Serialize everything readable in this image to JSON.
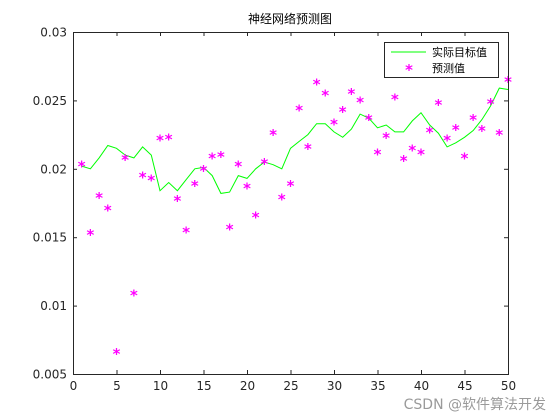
{
  "chart_data": {
    "type": "line",
    "title": "神经网络预测图",
    "xlabel": "",
    "ylabel": "",
    "xlim": [
      0,
      50
    ],
    "ylim": [
      0.005,
      0.03
    ],
    "x_ticks": [
      "0",
      "5",
      "10",
      "15",
      "20",
      "25",
      "30",
      "35",
      "40",
      "45",
      "50"
    ],
    "y_ticks": [
      "0.005",
      "0.01",
      "0.015",
      "0.02",
      "0.025",
      "0.03"
    ],
    "grid": false,
    "legend_position": "top-right",
    "x": [
      1,
      2,
      3,
      4,
      5,
      6,
      7,
      8,
      9,
      10,
      11,
      12,
      13,
      14,
      15,
      16,
      17,
      18,
      19,
      20,
      21,
      22,
      23,
      24,
      25,
      26,
      27,
      28,
      29,
      30,
      31,
      32,
      33,
      34,
      35,
      36,
      37,
      38,
      39,
      40,
      41,
      42,
      43,
      44,
      45,
      46,
      47,
      48,
      49,
      50
    ],
    "series": [
      {
        "name": "实际目标值",
        "style": "line",
        "color": "#00ff00",
        "values": [
          0.0202,
          0.02,
          0.0208,
          0.0217,
          0.0215,
          0.021,
          0.0208,
          0.0216,
          0.021,
          0.0184,
          0.019,
          0.0184,
          0.0192,
          0.02,
          0.0201,
          0.0195,
          0.0182,
          0.0183,
          0.0195,
          0.0193,
          0.02,
          0.0205,
          0.0203,
          0.02,
          0.0215,
          0.022,
          0.0225,
          0.0233,
          0.0233,
          0.0227,
          0.0223,
          0.0229,
          0.024,
          0.0237,
          0.023,
          0.0232,
          0.0227,
          0.0227,
          0.0235,
          0.0241,
          0.0232,
          0.0226,
          0.0216,
          0.0219,
          0.0223,
          0.0228,
          0.0236,
          0.0246,
          0.0259,
          0.0258
        ]
      },
      {
        "name": "预测值",
        "style": "marker",
        "marker": "*",
        "color": "#ff00ff",
        "values": [
          0.0203,
          0.0153,
          0.018,
          0.0171,
          0.0066,
          0.0208,
          0.0109,
          0.0195,
          0.0193,
          0.0222,
          0.0223,
          0.0178,
          0.0155,
          0.0189,
          0.02,
          0.0209,
          0.021,
          0.0157,
          0.0203,
          0.0187,
          0.0166,
          0.0205,
          0.0226,
          0.0179,
          0.0189,
          0.0244,
          0.0216,
          0.0263,
          0.0255,
          0.0234,
          0.0243,
          0.0256,
          0.025,
          0.0237,
          0.0212,
          0.0224,
          0.0252,
          0.0207,
          0.0215,
          0.0212,
          0.0228,
          0.0248,
          0.0222,
          0.023,
          0.0209,
          0.0237,
          0.0229,
          0.0249,
          0.0226,
          0.0265
        ]
      }
    ]
  },
  "watermark": "CSDN @软件算法开发",
  "colors": {
    "actual": "#00ff00",
    "predicted": "#ff00ff",
    "axis": "#262626"
  }
}
